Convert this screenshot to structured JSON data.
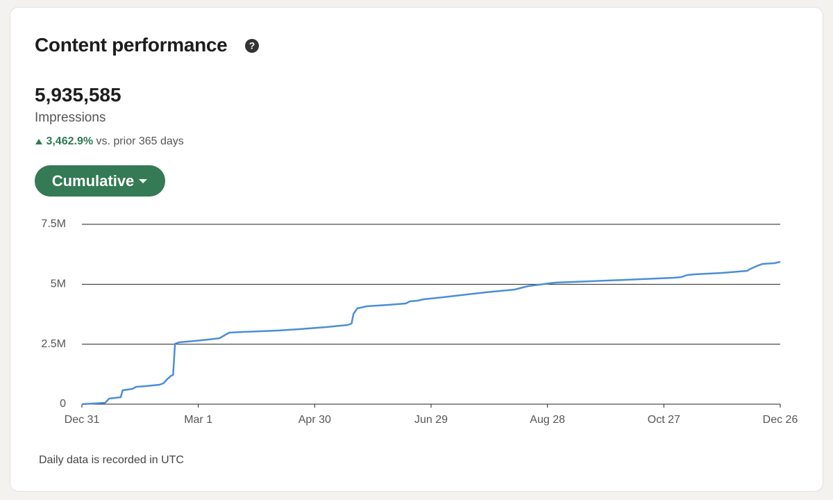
{
  "card": {
    "title": "Content performance",
    "total": "5,935,585",
    "metric": "Impressions",
    "change": "3,462.9%",
    "comparison": "vs. prior 365 days",
    "button": "Cumulative",
    "footnote": "Daily data is recorded in UTC"
  },
  "chart_data": {
    "type": "line",
    "x": [
      0,
      12,
      14,
      20,
      21,
      26,
      28,
      33,
      40,
      42,
      44,
      46,
      47,
      48,
      50,
      58,
      65,
      71,
      74,
      76,
      83,
      101,
      112,
      126,
      137,
      139,
      140,
      142,
      147,
      158,
      167,
      169,
      173,
      176,
      183,
      208,
      223,
      230,
      241,
      244,
      262,
      280,
      305,
      309,
      312,
      316,
      330,
      343,
      344,
      348,
      351,
      357,
      360
    ],
    "series": [
      {
        "color": "#4a8ed8",
        "values": [
          0,
          58000,
          232000,
          290000,
          579000,
          637000,
          724000,
          753000,
          811000,
          869000,
          1042000,
          1187000,
          1216000,
          2519000,
          2577000,
          2635000,
          2693000,
          2751000,
          2896000,
          2983000,
          3012000,
          3070000,
          3127000,
          3214000,
          3301000,
          3359000,
          3765000,
          3996000,
          4083000,
          4141000,
          4199000,
          4286000,
          4315000,
          4373000,
          4431000,
          4662000,
          4778000,
          4923000,
          5039000,
          5068000,
          5126000,
          5183000,
          5270000,
          5299000,
          5386000,
          5415000,
          5473000,
          5560000,
          5618000,
          5763000,
          5850000,
          5879000,
          5936000
        ]
      }
    ],
    "xlim": [
      0,
      360
    ],
    "xticks": [
      {
        "value": 0,
        "label": "Dec 31"
      },
      {
        "value": 60,
        "label": "Mar 1"
      },
      {
        "value": 120,
        "label": "Apr 30"
      },
      {
        "value": 180,
        "label": "Jun 29"
      },
      {
        "value": 240,
        "label": "Aug 28"
      },
      {
        "value": 300,
        "label": "Oct 27"
      },
      {
        "value": 360,
        "label": "Dec 26"
      }
    ],
    "ylim": [
      0,
      7500000
    ],
    "yticks": [
      0,
      {
        "value": 2500000,
        "label": "2.5M"
      },
      {
        "value": 5000000,
        "label": "5M"
      },
      {
        "value": 7500000,
        "label": "7.5M"
      }
    ],
    "grid": true
  }
}
